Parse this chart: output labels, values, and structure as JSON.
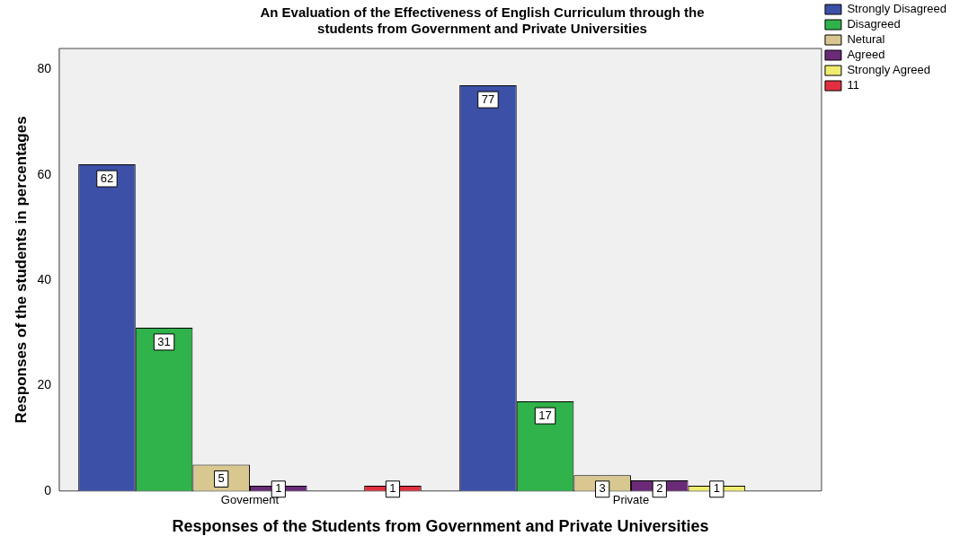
{
  "chart_data": {
    "type": "bar",
    "title": "An Evaluation of the Effectiveness of English Curriculum through the students from Government and Private Universities",
    "xlabel": "Responses of the Students from Government and Private Universities",
    "ylabel": "Responses of the students in percentages",
    "categories": [
      "Goverment",
      "Private"
    ],
    "series": [
      {
        "name": "Strongly Disagreed",
        "color": "#3c50a8",
        "values": [
          62,
          77
        ]
      },
      {
        "name": "Disagreed",
        "color": "#2fb34a",
        "values": [
          31,
          17
        ]
      },
      {
        "name": "Netural",
        "color": "#d8c890",
        "values": [
          5,
          3
        ]
      },
      {
        "name": "Agreed",
        "color": "#6a2a78",
        "values": [
          1,
          2
        ]
      },
      {
        "name": "Strongly Agreed",
        "color": "#f0ec70",
        "values": [
          null,
          1
        ]
      },
      {
        "name": "11",
        "color": "#e03040",
        "values": [
          1,
          null
        ]
      }
    ],
    "ylim": [
      0,
      84
    ],
    "yticks": [
      0,
      20,
      40,
      60,
      80
    ],
    "grid": false,
    "legend": "right",
    "data_labels": true
  }
}
